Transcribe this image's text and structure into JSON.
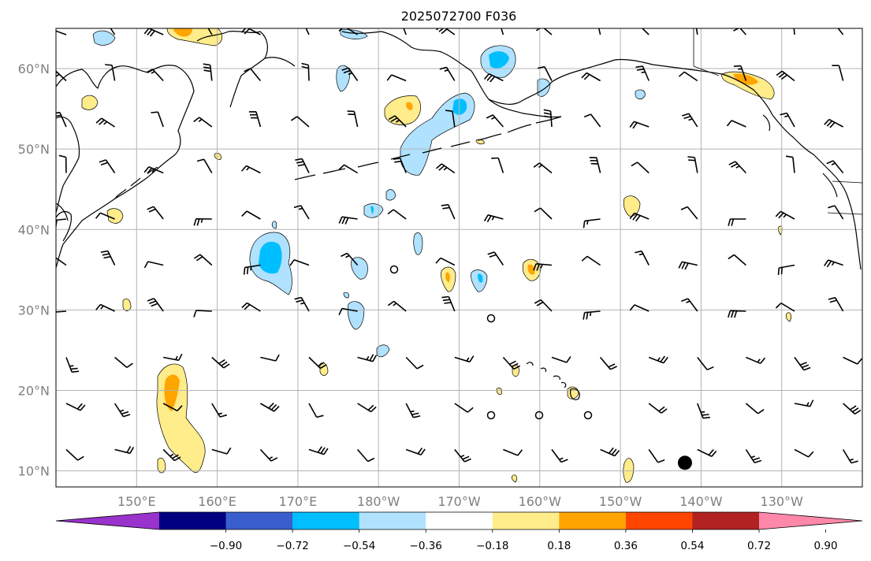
{
  "map": {
    "title": "2025072700 F036",
    "extent": {
      "lon_min": 140,
      "lon_max": 240,
      "lat_min": 8,
      "lat_max": 65
    },
    "gridlines": true,
    "lon_ticks": [
      {
        "lon": 150,
        "label": "150°E"
      },
      {
        "lon": 160,
        "label": "160°E"
      },
      {
        "lon": 170,
        "label": "170°E"
      },
      {
        "lon": 180,
        "label": "180°W"
      },
      {
        "lon": 190,
        "label": "170°W"
      },
      {
        "lon": 200,
        "label": "160°W"
      },
      {
        "lon": 210,
        "label": "150°W"
      },
      {
        "lon": 220,
        "label": "140°W"
      },
      {
        "lon": 230,
        "label": "130°W"
      }
    ],
    "lat_ticks": [
      {
        "lat": 10,
        "label": "10°N"
      },
      {
        "lat": 20,
        "label": "20°N"
      },
      {
        "lat": 30,
        "label": "30°N"
      },
      {
        "lat": 40,
        "label": "40°N"
      },
      {
        "lat": 50,
        "label": "50°N"
      },
      {
        "lat": 60,
        "label": "60°N"
      }
    ],
    "marker": {
      "type": "filled-circle",
      "lon": 218,
      "lat": 11
    },
    "colorbar": {
      "orientation": "horizontal",
      "extend": "both",
      "colors": [
        "#9933cc",
        "#000080",
        "#3a5fcd",
        "#00bfff",
        "#b0e2ff",
        "#ffffff",
        "#ffec8b",
        "#ffa500",
        "#ff4500",
        "#b22222",
        "#ff88aa"
      ],
      "tick_labels": [
        "−0.90",
        "−0.72",
        "−0.54",
        "−0.36",
        "−0.18",
        "0.18",
        "0.36",
        "0.54",
        "0.72",
        "0.90"
      ]
    }
  }
}
